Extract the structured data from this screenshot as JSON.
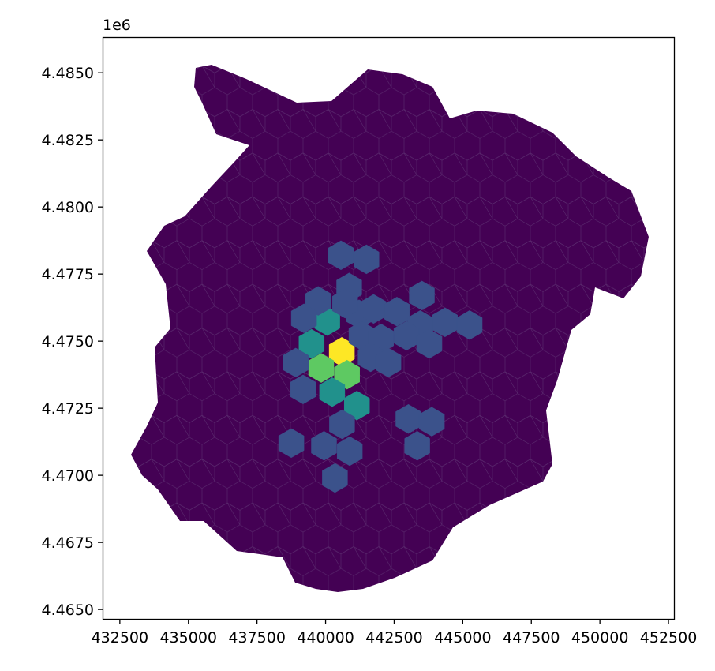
{
  "chart_data": {
    "type": "heatmap",
    "title": "",
    "xlabel": "",
    "ylabel": "",
    "y_offset_label": "1e6",
    "xlim": [
      431900,
      452700
    ],
    "ylim": [
      4.46465,
      4.4863
    ],
    "y_scale_factor": 1000000,
    "x_ticks": [
      432500,
      435000,
      437500,
      440000,
      442500,
      445000,
      447500,
      450000,
      452500
    ],
    "x_tick_labels": [
      "432500",
      "435000",
      "437500",
      "440000",
      "442500",
      "445000",
      "447500",
      "450000",
      "452500"
    ],
    "y_ticks": [
      4.465,
      4.4675,
      4.47,
      4.4725,
      4.475,
      4.4775,
      4.48,
      4.4825,
      4.485
    ],
    "y_tick_labels": [
      "4.4650",
      "4.4675",
      "4.4700",
      "4.4725",
      "4.4750",
      "4.4775",
      "4.4800",
      "4.4825",
      "4.4850"
    ],
    "colormap": [
      "#440154",
      "#3b528b",
      "#21918c",
      "#5ec962",
      "#fde725"
    ],
    "grid": false,
    "legend": false,
    "hex_width_units": 920,
    "highlight_cells": [
      {
        "x": 440590,
        "y": 4.4746,
        "level": 4
      },
      {
        "x": 439840,
        "y": 4.474,
        "level": 3
      },
      {
        "x": 440780,
        "y": 4.47375,
        "level": 3
      },
      {
        "x": 440060,
        "y": 4.47575,
        "level": 2
      },
      {
        "x": 439490,
        "y": 4.4749,
        "level": 2
      },
      {
        "x": 440240,
        "y": 4.4731,
        "level": 2
      },
      {
        "x": 441140,
        "y": 4.4726,
        "level": 2
      },
      {
        "x": 440560,
        "y": 4.4782,
        "level": 1
      },
      {
        "x": 441490,
        "y": 4.47805,
        "level": 1
      },
      {
        "x": 440860,
        "y": 4.477,
        "level": 1
      },
      {
        "x": 441220,
        "y": 4.476,
        "level": 1
      },
      {
        "x": 439730,
        "y": 4.4765,
        "level": 1
      },
      {
        "x": 439210,
        "y": 4.47585,
        "level": 1
      },
      {
        "x": 440710,
        "y": 4.4764,
        "level": 1
      },
      {
        "x": 441750,
        "y": 4.4762,
        "level": 1
      },
      {
        "x": 442600,
        "y": 4.4761,
        "level": 1
      },
      {
        "x": 443510,
        "y": 4.4767,
        "level": 1
      },
      {
        "x": 443450,
        "y": 4.4756,
        "level": 1
      },
      {
        "x": 444350,
        "y": 4.4757,
        "level": 1
      },
      {
        "x": 445250,
        "y": 4.4756,
        "level": 1
      },
      {
        "x": 441310,
        "y": 4.4752,
        "level": 1
      },
      {
        "x": 442020,
        "y": 4.4751,
        "level": 1
      },
      {
        "x": 442950,
        "y": 4.4752,
        "level": 1
      },
      {
        "x": 443780,
        "y": 4.4749,
        "level": 1
      },
      {
        "x": 441640,
        "y": 4.4744,
        "level": 1
      },
      {
        "x": 442290,
        "y": 4.4742,
        "level": 1
      },
      {
        "x": 438910,
        "y": 4.4742,
        "level": 1
      },
      {
        "x": 439180,
        "y": 4.4732,
        "level": 1
      },
      {
        "x": 440600,
        "y": 4.4719,
        "level": 1
      },
      {
        "x": 443020,
        "y": 4.4721,
        "level": 1
      },
      {
        "x": 443870,
        "y": 4.472,
        "level": 1
      },
      {
        "x": 443340,
        "y": 4.4711,
        "level": 1
      },
      {
        "x": 438750,
        "y": 4.4712,
        "level": 1
      },
      {
        "x": 439940,
        "y": 4.4711,
        "level": 1
      },
      {
        "x": 440880,
        "y": 4.4709,
        "level": 1
      },
      {
        "x": 440340,
        "y": 4.4699,
        "level": 1
      }
    ]
  }
}
